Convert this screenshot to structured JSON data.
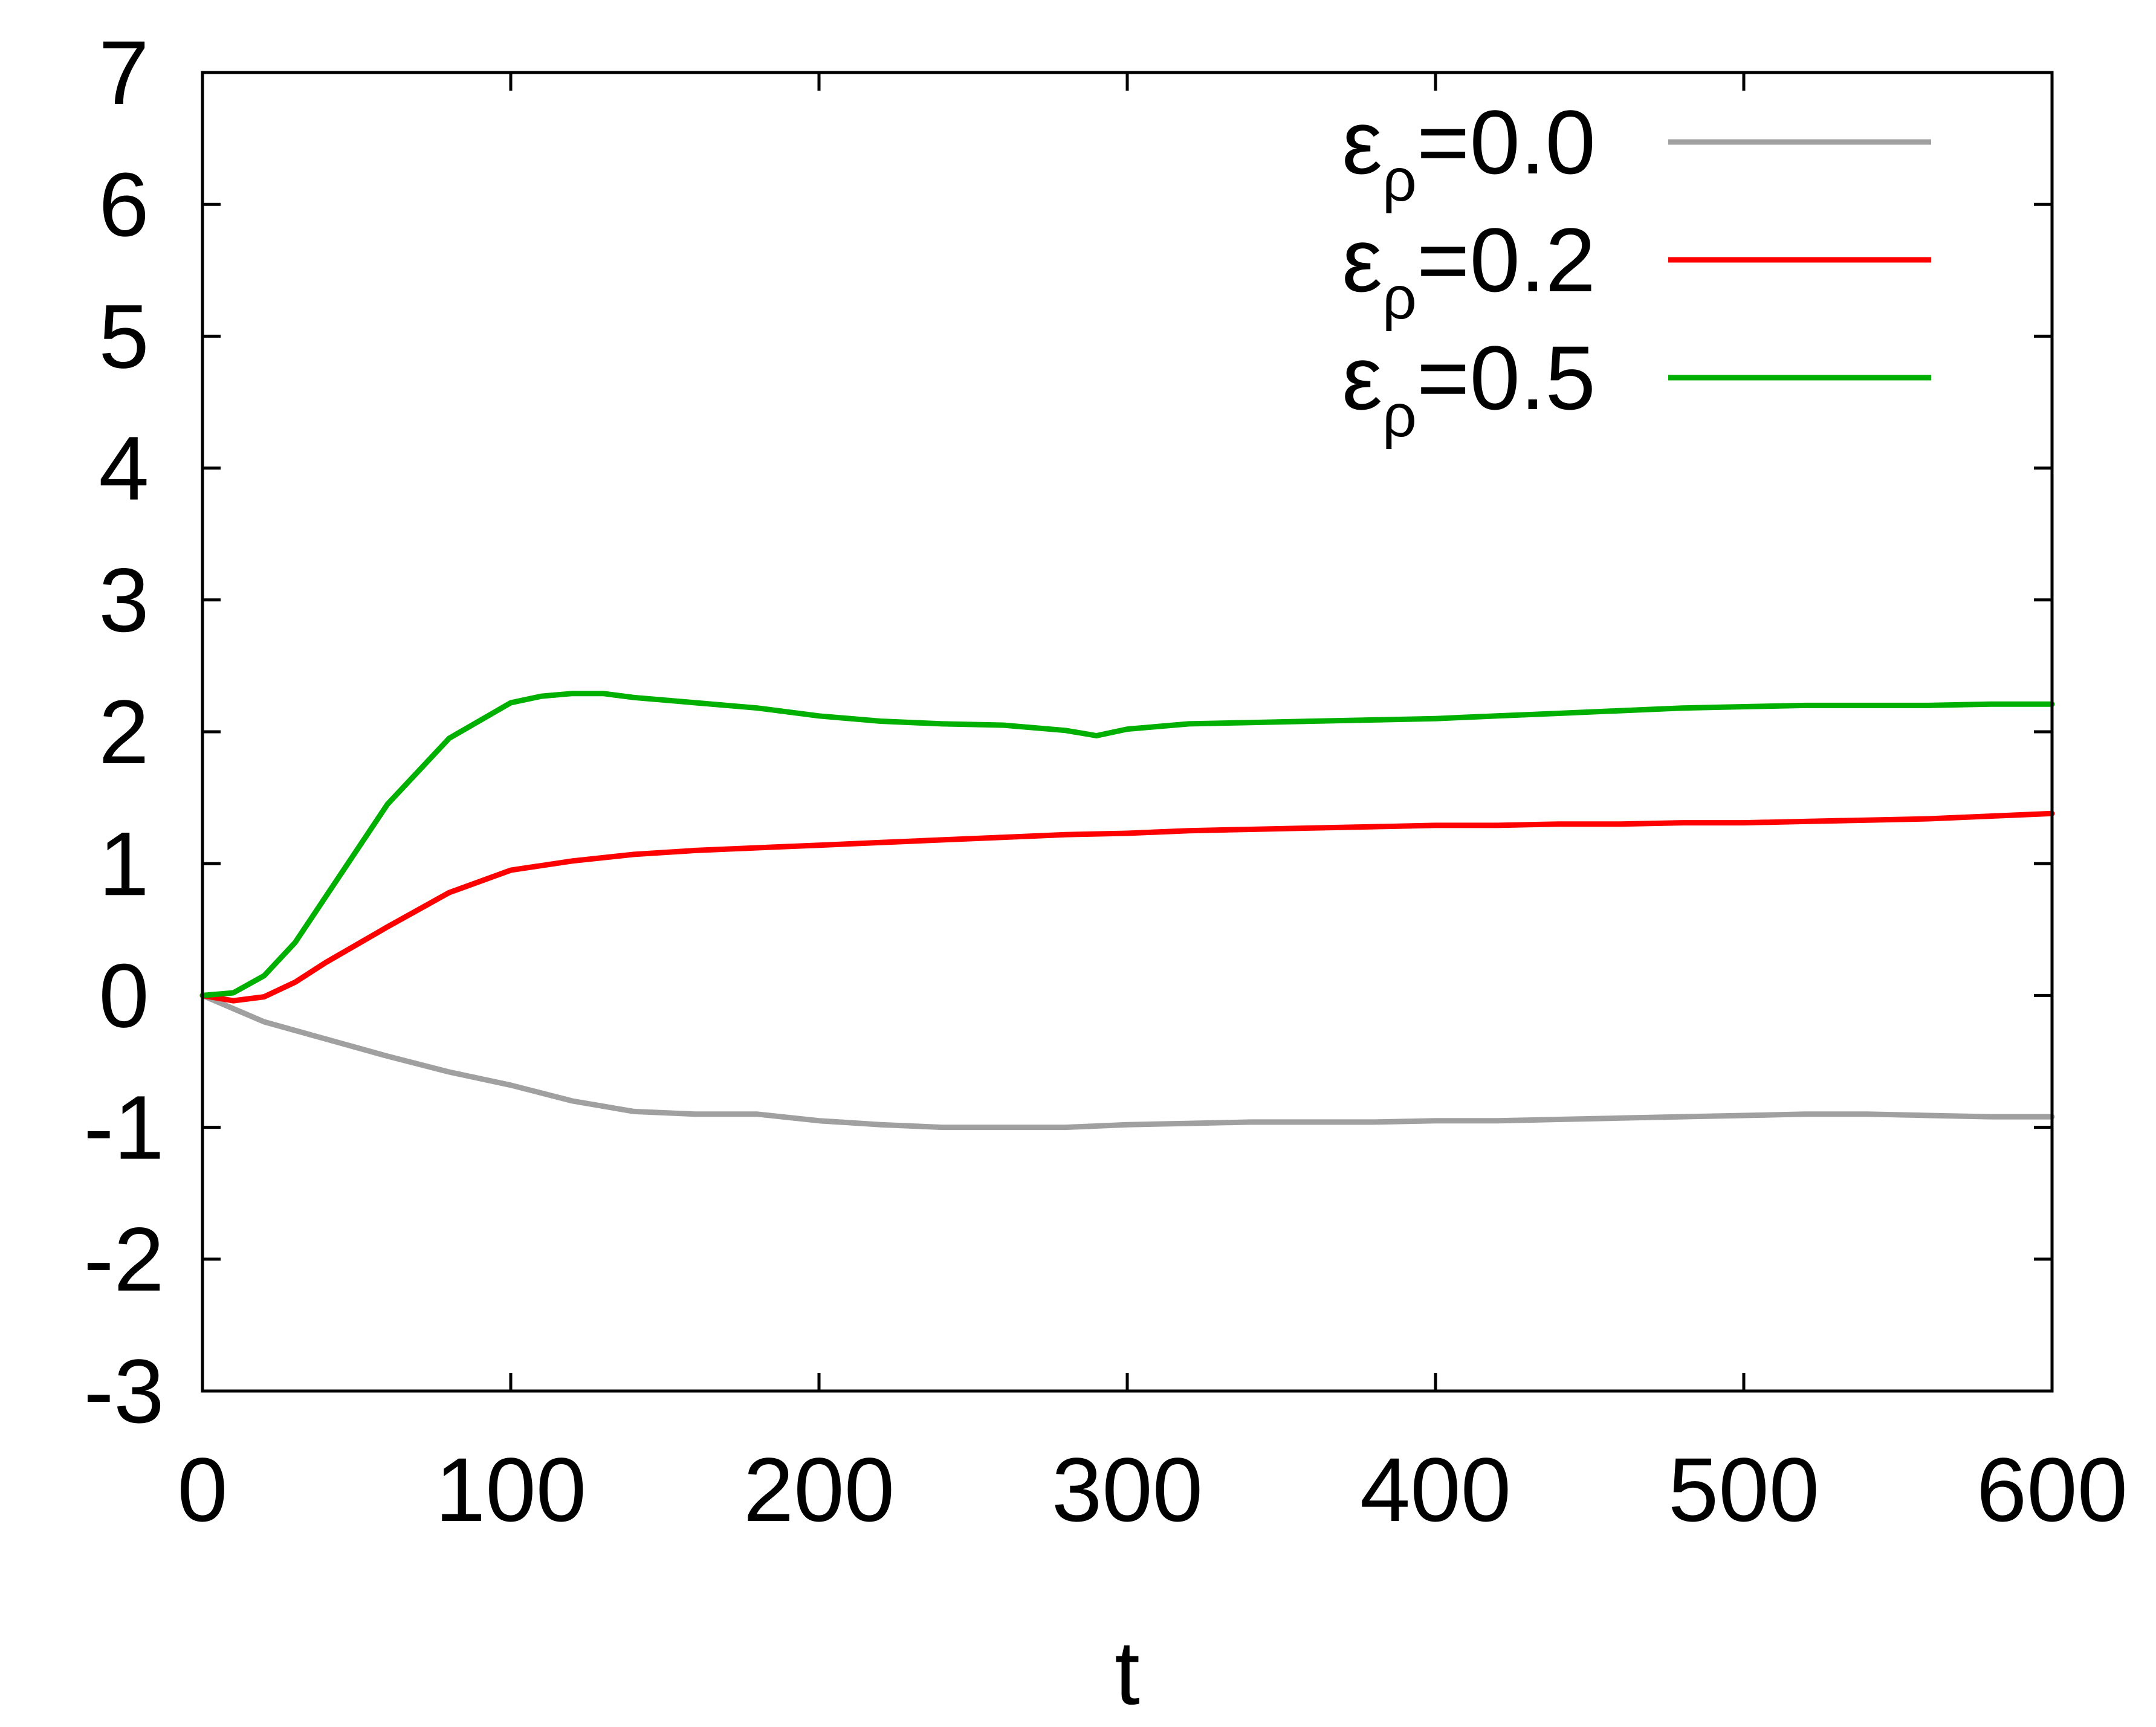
{
  "chart_data": {
    "type": "line",
    "title": "",
    "xlabel": "t",
    "ylabel": "",
    "xlim": [
      0,
      600
    ],
    "ylim": [
      -3,
      7
    ],
    "xticks": [
      "0",
      "100",
      "200",
      "300",
      "400",
      "500",
      "600"
    ],
    "yticks": [
      "-3",
      "-2",
      "-1",
      "0",
      "1",
      "2",
      "3",
      "4",
      "5",
      "6",
      "7"
    ],
    "grid": false,
    "legend_position": "top-right",
    "series": [
      {
        "label_main": "ε",
        "label_sub": "ρ",
        "label_value": "=0.0",
        "color": "#a0a0a0",
        "x": [
          0,
          10,
          20,
          40,
          60,
          80,
          100,
          120,
          140,
          160,
          180,
          200,
          220,
          240,
          260,
          280,
          300,
          320,
          340,
          360,
          380,
          400,
          420,
          440,
          460,
          480,
          500,
          520,
          540,
          560,
          580,
          600
        ],
        "y": [
          0,
          -0.1,
          -0.2,
          -0.33,
          -0.46,
          -0.58,
          -0.68,
          -0.8,
          -0.88,
          -0.9,
          -0.9,
          -0.95,
          -0.98,
          -1.0,
          -1.0,
          -1.0,
          -0.98,
          -0.97,
          -0.96,
          -0.96,
          -0.96,
          -0.95,
          -0.95,
          -0.94,
          -0.93,
          -0.92,
          -0.91,
          -0.9,
          -0.9,
          -0.91,
          -0.92,
          -0.92
        ]
      },
      {
        "label_main": "ε",
        "label_sub": "ρ",
        "label_value": "=0.2",
        "color": "#ff0000",
        "x": [
          0,
          5,
          10,
          20,
          30,
          40,
          60,
          80,
          100,
          120,
          140,
          160,
          180,
          200,
          220,
          240,
          260,
          280,
          300,
          320,
          340,
          360,
          380,
          400,
          420,
          440,
          460,
          480,
          500,
          520,
          540,
          560,
          580,
          600
        ],
        "y": [
          0,
          -0.02,
          -0.04,
          -0.01,
          0.1,
          0.25,
          0.52,
          0.78,
          0.95,
          1.02,
          1.07,
          1.1,
          1.12,
          1.14,
          1.16,
          1.18,
          1.2,
          1.22,
          1.23,
          1.25,
          1.26,
          1.27,
          1.28,
          1.29,
          1.29,
          1.3,
          1.3,
          1.31,
          1.31,
          1.32,
          1.33,
          1.34,
          1.36,
          1.38
        ]
      },
      {
        "label_main": "ε",
        "label_sub": "ρ",
        "label_value": "=0.5",
        "color": "#00b000",
        "x": [
          0,
          10,
          20,
          30,
          40,
          60,
          80,
          100,
          110,
          120,
          130,
          140,
          160,
          180,
          200,
          220,
          240,
          260,
          280,
          290,
          300,
          320,
          340,
          360,
          380,
          400,
          420,
          440,
          460,
          480,
          500,
          520,
          540,
          560,
          580,
          600
        ],
        "y": [
          0,
          0.02,
          0.15,
          0.4,
          0.75,
          1.45,
          1.95,
          2.22,
          2.27,
          2.29,
          2.29,
          2.26,
          2.22,
          2.18,
          2.12,
          2.08,
          2.06,
          2.05,
          2.01,
          1.97,
          2.02,
          2.06,
          2.07,
          2.08,
          2.09,
          2.1,
          2.12,
          2.14,
          2.16,
          2.18,
          2.19,
          2.2,
          2.2,
          2.2,
          2.21,
          2.21
        ]
      }
    ]
  }
}
